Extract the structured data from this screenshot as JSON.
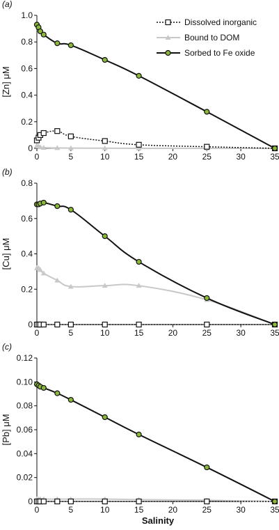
{
  "figure": {
    "xlabel": "Salinity",
    "legend": {
      "placement": "top-right",
      "entries": [
        {
          "label": "Dissolved inorganic",
          "series": "dissolved",
          "style": "dotted-black-square"
        },
        {
          "label": "Bound to DOM",
          "series": "dom",
          "style": "solid-lightgray-triangle"
        },
        {
          "label": "Sorbed to Fe oxide",
          "series": "feox",
          "style": "solid-black-greenfill-circle"
        }
      ]
    },
    "colors": {
      "dissolved": "#111111",
      "dom": "#c8c8c8",
      "feox": "#111111",
      "feox_marker": "#8cb83a"
    }
  },
  "chart_data": [
    {
      "type": "line",
      "panel_label": "(a)",
      "ylabel": "[Zn] μM",
      "xlim": [
        0,
        35
      ],
      "ylim": [
        0,
        1.0
      ],
      "xticks": [
        "0",
        "5",
        "10",
        "15",
        "20",
        "25",
        "30",
        "35"
      ],
      "yticks": [
        "0",
        "0.2",
        "0.4",
        "0.6",
        "0.8",
        "1.0"
      ],
      "series": [
        {
          "name": "Dissolved inorganic",
          "key": "dissolved",
          "x": [
            0,
            0.25,
            0.5,
            1,
            3,
            5,
            10,
            15,
            25,
            35
          ],
          "y": [
            0.06,
            0.08,
            0.1,
            0.115,
            0.13,
            0.09,
            0.055,
            0.027,
            0.012,
            0
          ]
        },
        {
          "name": "Bound to DOM",
          "key": "dom",
          "x": [
            0,
            0.25,
            0.5,
            1,
            3,
            5,
            10,
            15,
            25,
            35
          ],
          "y": [
            0.02,
            0.015,
            0.01,
            0.005,
            0.003,
            0.002,
            0.001,
            0,
            0,
            0
          ]
        },
        {
          "name": "Sorbed to Fe oxide",
          "key": "feox",
          "x": [
            0,
            0.25,
            0.5,
            1,
            3,
            5,
            10,
            15,
            25,
            35
          ],
          "y": [
            0.93,
            0.91,
            0.88,
            0.855,
            0.79,
            0.775,
            0.665,
            0.545,
            0.275,
            0
          ]
        }
      ]
    },
    {
      "type": "line",
      "panel_label": "(b)",
      "ylabel": "[Cu] μM",
      "xlim": [
        0,
        35
      ],
      "ylim": [
        0,
        0.8
      ],
      "xticks": [
        "0",
        "5",
        "10",
        "15",
        "20",
        "25",
        "30",
        "35"
      ],
      "yticks": [
        "0",
        "0.2",
        "0.4",
        "0.6",
        "0.8"
      ],
      "series": [
        {
          "name": "Dissolved inorganic",
          "key": "dissolved",
          "x": [
            0,
            0.25,
            0.5,
            1,
            3,
            5,
            10,
            15,
            25,
            35
          ],
          "y": [
            0,
            0,
            0,
            0,
            0,
            0,
            0,
            0,
            0,
            0
          ]
        },
        {
          "name": "Bound to DOM",
          "key": "dom",
          "x": [
            0,
            0.25,
            0.5,
            1,
            3,
            5,
            10,
            15,
            25,
            35
          ],
          "y": [
            0.32,
            0.32,
            0.31,
            0.29,
            0.25,
            0.215,
            0.22,
            0.22,
            0.14,
            0
          ]
        },
        {
          "name": "Sorbed to Fe oxide",
          "key": "feox",
          "x": [
            0,
            0.25,
            0.5,
            1,
            3,
            5,
            10,
            15,
            25,
            35
          ],
          "y": [
            0.68,
            0.68,
            0.685,
            0.69,
            0.67,
            0.65,
            0.5,
            0.355,
            0.15,
            0
          ]
        }
      ]
    },
    {
      "type": "line",
      "panel_label": "(c)",
      "ylabel": "[Pb] μM",
      "xlim": [
        0,
        35
      ],
      "ylim": [
        0,
        0.12
      ],
      "xticks": [
        "0",
        "5",
        "10",
        "15",
        "20",
        "25",
        "30",
        "35"
      ],
      "yticks": [
        "0",
        "0.02",
        "0.04",
        "0.06",
        "0.08",
        "0.10",
        "0.12"
      ],
      "series": [
        {
          "name": "Dissolved inorganic",
          "key": "dissolved",
          "x": [
            0,
            0.25,
            0.5,
            1,
            3,
            5,
            10,
            15,
            25,
            35
          ],
          "y": [
            0,
            0,
            0,
            0,
            0,
            0,
            0,
            0,
            0,
            0
          ]
        },
        {
          "name": "Bound to DOM",
          "key": "dom",
          "x": [
            0,
            0.25,
            0.5,
            1,
            3,
            5,
            10,
            15,
            25,
            35
          ],
          "y": [
            0.002,
            0.002,
            0.002,
            0.002,
            0.002,
            0.002,
            0.002,
            0.0015,
            0.001,
            0
          ]
        },
        {
          "name": "Sorbed to Fe oxide",
          "key": "feox",
          "x": [
            0,
            0.25,
            0.5,
            1,
            3,
            5,
            10,
            15,
            25,
            35
          ],
          "y": [
            0.098,
            0.097,
            0.096,
            0.095,
            0.0905,
            0.085,
            0.0705,
            0.056,
            0.0285,
            0
          ]
        }
      ]
    }
  ]
}
